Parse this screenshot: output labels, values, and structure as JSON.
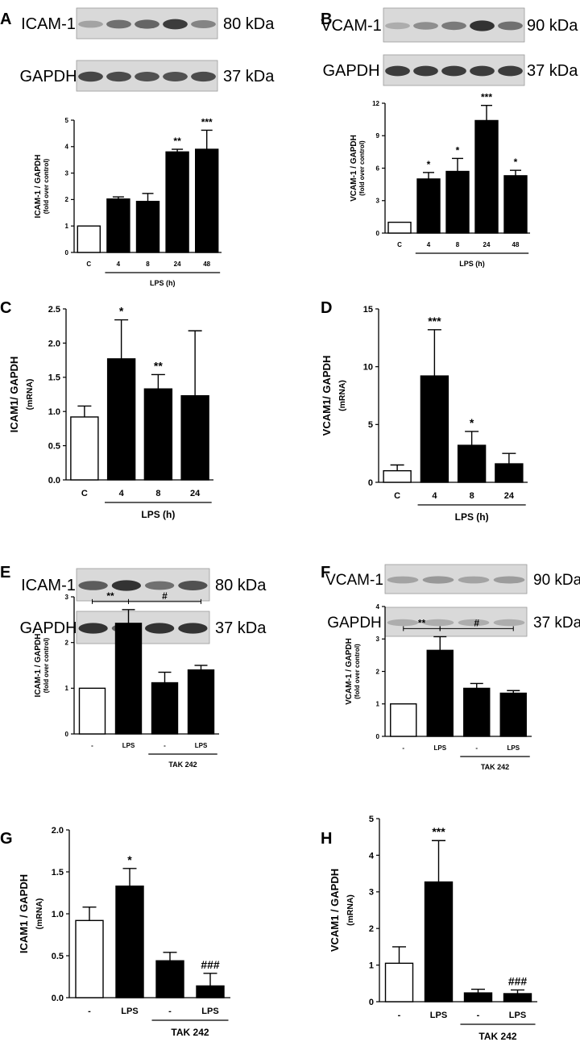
{
  "chart_data": [
    {
      "panel": "A",
      "type": "bar",
      "blots": [
        {
          "name": "ICAM-1",
          "size": "80 kDa",
          "intensity": [
            0.35,
            0.6,
            0.65,
            0.85,
            0.5
          ]
        },
        {
          "name": "GAPDH",
          "size": "37 kDa",
          "intensity": [
            0.8,
            0.78,
            0.75,
            0.75,
            0.78
          ]
        }
      ],
      "ylabel": "ICAM-1 / GAPDH",
      "ylabel2": "(fold over control)",
      "ylim": [
        0,
        5
      ],
      "yticks": [
        "0",
        "1",
        "2",
        "3",
        "4",
        "5"
      ],
      "categories": [
        "C",
        "4",
        "8",
        "24",
        "48"
      ],
      "values": [
        1,
        2.02,
        1.93,
        3.8,
        3.9
      ],
      "errors": [
        0,
        0.08,
        0.3,
        0.1,
        0.72
      ],
      "fills": [
        "#ffffff",
        "#000000",
        "#000000",
        "#000000",
        "#000000"
      ],
      "significance": [
        "",
        "",
        "",
        "**",
        "***"
      ],
      "group_label": "LPS (h)",
      "group_range": [
        1,
        4
      ]
    },
    {
      "panel": "B",
      "type": "bar",
      "blots": [
        {
          "name": "VCAM-1",
          "size": "90 kDa",
          "intensity": [
            0.3,
            0.45,
            0.55,
            0.9,
            0.6
          ]
        },
        {
          "name": "GAPDH",
          "size": "37 kDa",
          "intensity": [
            0.85,
            0.85,
            0.85,
            0.85,
            0.85
          ]
        }
      ],
      "ylabel": "VCAM-1 / GAPDH",
      "ylabel2": "(fold over control)",
      "ylim": [
        0,
        12
      ],
      "yticks": [
        "0",
        "3",
        "6",
        "9",
        "12"
      ],
      "categories": [
        "C",
        "4",
        "8",
        "24",
        "48"
      ],
      "values": [
        1,
        5,
        5.7,
        10.4,
        5.3
      ],
      "errors": [
        0,
        0.6,
        1.2,
        1.4,
        0.5
      ],
      "fills": [
        "#ffffff",
        "#000000",
        "#000000",
        "#000000",
        "#000000"
      ],
      "significance": [
        "",
        "*",
        "*",
        "***",
        "*"
      ],
      "group_label": "LPS (h)",
      "group_range": [
        1,
        4
      ]
    },
    {
      "panel": "C",
      "type": "bar",
      "ylabel": "ICAM1/ GAPDH",
      "ylabel2": "(mRNA)",
      "ylim": [
        0,
        2.5
      ],
      "yticks": [
        "0.0",
        "0.5",
        "1.0",
        "1.5",
        "2.0",
        "2.5"
      ],
      "categories": [
        "C",
        "4",
        "8",
        "24"
      ],
      "values": [
        0.92,
        1.77,
        1.33,
        1.23
      ],
      "errors": [
        0.16,
        0.57,
        0.21,
        0.95
      ],
      "fills": [
        "#ffffff",
        "#000000",
        "#000000",
        "#000000"
      ],
      "significance": [
        "",
        "*",
        "**",
        ""
      ],
      "group_label": "LPS (h)",
      "group_range": [
        1,
        3
      ]
    },
    {
      "panel": "D",
      "type": "bar",
      "ylabel": "VCAM1/ GAPDH",
      "ylabel2": "(mRNA)",
      "ylim": [
        0,
        15
      ],
      "yticks": [
        "0",
        "5",
        "10",
        "15"
      ],
      "categories": [
        "C",
        "4",
        "8",
        "24"
      ],
      "values": [
        1.0,
        9.2,
        3.2,
        1.6
      ],
      "errors": [
        0.5,
        4.0,
        1.2,
        0.9
      ],
      "fills": [
        "#ffffff",
        "#000000",
        "#000000",
        "#000000"
      ],
      "significance": [
        "",
        "***",
        "*",
        ""
      ],
      "group_label": "LPS (h)",
      "group_range": [
        1,
        3
      ]
    },
    {
      "panel": "E",
      "type": "bar",
      "blots": [
        {
          "name": "ICAM-1",
          "size": "80 kDa",
          "intensity": [
            0.7,
            0.9,
            0.6,
            0.75
          ]
        },
        {
          "name": "GAPDH",
          "size": "37 kDa",
          "intensity": [
            0.9,
            0.65,
            0.9,
            0.9
          ]
        }
      ],
      "ylabel": "ICAM-1 / GAPDH",
      "ylabel2": "(fold over control)",
      "ylim": [
        0,
        3
      ],
      "yticks": [
        "0",
        "1",
        "2",
        "3"
      ],
      "categories": [
        "-",
        "LPS",
        "-",
        "LPS"
      ],
      "values": [
        1,
        2.42,
        1.12,
        1.4
      ],
      "errors": [
        0,
        0.3,
        0.23,
        0.1
      ],
      "fills": [
        "#ffffff",
        "#000000",
        "#000000",
        "#000000"
      ],
      "brackets": [
        {
          "from": 0,
          "to": 1,
          "label": "**"
        },
        {
          "from": 1,
          "to": 3,
          "label": "#"
        }
      ],
      "group_label": "TAK 242",
      "group_range": [
        2,
        3
      ]
    },
    {
      "panel": "F",
      "type": "bar",
      "blots": [
        {
          "name": "VCAM-1",
          "size": "90 kDa",
          "intensity": [
            0.35,
            0.4,
            0.35,
            0.38
          ]
        },
        {
          "name": "GAPDH",
          "size": "37 kDa",
          "intensity": [
            0.3,
            0.3,
            0.3,
            0.3
          ]
        }
      ],
      "ylabel": "VCAM-1 / GAPDH",
      "ylabel2": "(fold over control)",
      "ylim": [
        0,
        4
      ],
      "yticks": [
        "0",
        "1",
        "2",
        "3",
        "4"
      ],
      "categories": [
        "-",
        "LPS",
        "-",
        "LPS"
      ],
      "values": [
        1,
        2.65,
        1.48,
        1.33
      ],
      "errors": [
        0,
        0.42,
        0.15,
        0.08
      ],
      "fills": [
        "#ffffff",
        "#000000",
        "#000000",
        "#000000"
      ],
      "brackets": [
        {
          "from": 0,
          "to": 1,
          "label": "**"
        },
        {
          "from": 1,
          "to": 3,
          "label": "#"
        }
      ],
      "group_label": "TAK 242",
      "group_range": [
        2,
        3
      ]
    },
    {
      "panel": "G",
      "type": "bar",
      "ylabel": "ICAM1 / GAPDH",
      "ylabel2": "(mRNA)",
      "ylim": [
        0,
        2.0
      ],
      "yticks": [
        "0.0",
        "0.5",
        "1.0",
        "1.5",
        "2.0"
      ],
      "categories": [
        "-",
        "LPS",
        "-",
        "LPS"
      ],
      "values": [
        0.92,
        1.33,
        0.44,
        0.14
      ],
      "errors": [
        0.16,
        0.21,
        0.1,
        0.15
      ],
      "fills": [
        "#ffffff",
        "#000000",
        "#000000",
        "#000000"
      ],
      "significance": [
        "",
        "*",
        "",
        "###"
      ],
      "group_label": "TAK 242",
      "group_range": [
        2,
        3
      ]
    },
    {
      "panel": "H",
      "type": "bar",
      "ylabel": "VCAM1 / GAPDH",
      "ylabel2": "(mRNA)",
      "ylim": [
        0,
        5
      ],
      "yticks": [
        "0",
        "1",
        "2",
        "3",
        "4",
        "5"
      ],
      "categories": [
        "-",
        "LPS",
        "-",
        "LPS"
      ],
      "values": [
        1.05,
        3.27,
        0.24,
        0.22
      ],
      "errors": [
        0.45,
        1.13,
        0.1,
        0.1
      ],
      "fills": [
        "#ffffff",
        "#000000",
        "#000000",
        "#000000"
      ],
      "significance": [
        "",
        "***",
        "",
        "###"
      ],
      "group_label": "TAK 242",
      "group_range": [
        2,
        3
      ]
    }
  ]
}
